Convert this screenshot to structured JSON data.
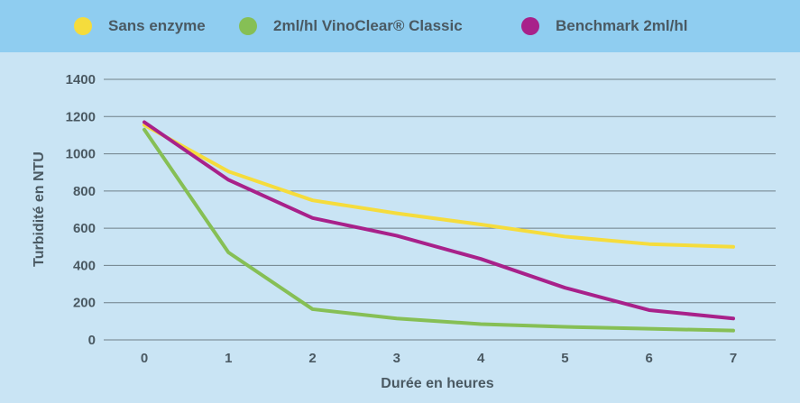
{
  "chart_data": {
    "type": "line",
    "title": "",
    "xlabel": "Durée en heures",
    "ylabel": "Turbidité en NTU",
    "x": [
      0,
      1,
      2,
      3,
      4,
      5,
      6,
      7
    ],
    "xlim": [
      0,
      7
    ],
    "ylim": [
      0,
      1400
    ],
    "yticks": [
      0,
      200,
      400,
      600,
      800,
      1000,
      1200,
      1400
    ],
    "grid": true,
    "legend_position": "top",
    "series": [
      {
        "name": "Sans enzyme",
        "color": "#f5dc3c",
        "values": [
          1155,
          905,
          750,
          680,
          620,
          555,
          515,
          500
        ]
      },
      {
        "name": "2ml/hl VinoClear® Classic",
        "color": "#86bf55",
        "values": [
          1130,
          470,
          165,
          115,
          85,
          70,
          60,
          50
        ]
      },
      {
        "name": "Benchmark 2ml/hl",
        "color": "#a8218a",
        "values": [
          1170,
          860,
          655,
          560,
          435,
          280,
          160,
          115
        ]
      }
    ]
  }
}
